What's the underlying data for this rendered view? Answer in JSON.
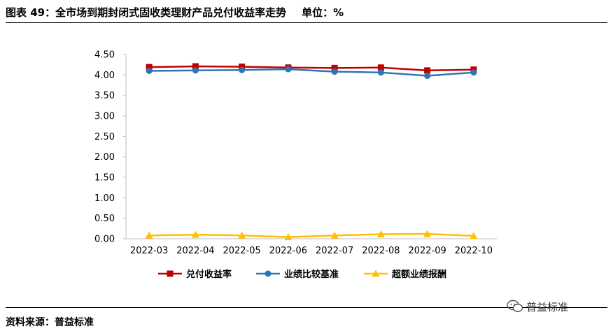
{
  "figure": {
    "title": "图表 49：全市场到期封闭式固收类理财产品兑付收益率走势",
    "unit": "单位：%",
    "source": "资料来源：普益标准",
    "watermark": "普益标准"
  },
  "colors": {
    "series_red": "#c00000",
    "series_blue": "#2e75b6",
    "series_yellow": "#ffc000"
  },
  "chart_data": {
    "type": "line",
    "title": "",
    "xlabel": "",
    "ylabel": "",
    "ylim": [
      0,
      4.5
    ],
    "y_ticks": [
      "0.00",
      "0.50",
      "1.00",
      "1.50",
      "2.00",
      "2.50",
      "3.00",
      "3.50",
      "4.00",
      "4.50"
    ],
    "categories": [
      "2022-03",
      "2022-04",
      "2022-05",
      "2022-06",
      "2022-07",
      "2022-08",
      "2022-09",
      "2022-10"
    ],
    "grid": false,
    "legend_position": "bottom",
    "series": [
      {
        "name": "兑付收益率",
        "marker": "square",
        "color": "#c00000",
        "values": [
          4.19,
          4.21,
          4.2,
          4.18,
          4.17,
          4.18,
          4.11,
          4.13
        ]
      },
      {
        "name": "业绩比较基准",
        "marker": "circle",
        "color": "#2e75b6",
        "values": [
          4.1,
          4.11,
          4.12,
          4.14,
          4.08,
          4.06,
          3.98,
          4.06
        ]
      },
      {
        "name": "超额业绩报酬",
        "marker": "triangle",
        "color": "#ffc000",
        "values": [
          0.08,
          0.1,
          0.08,
          0.04,
          0.08,
          0.11,
          0.12,
          0.07
        ]
      }
    ]
  }
}
